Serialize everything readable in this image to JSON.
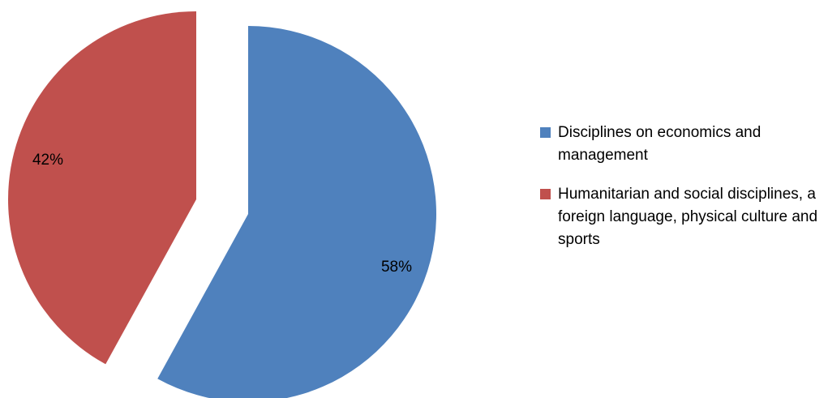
{
  "chart_data": {
    "type": "pie",
    "title": "",
    "slices": [
      {
        "label": "Disciplines on economics and management",
        "value": 58,
        "value_label": "58%",
        "color": "#4F81BD"
      },
      {
        "label": "Humanitarian and social disciplines, a foreign language, physical culture and sports",
        "value": 42,
        "value_label": "42%",
        "color": "#C0504D"
      }
    ],
    "legend_position": "right",
    "exploded": true
  }
}
